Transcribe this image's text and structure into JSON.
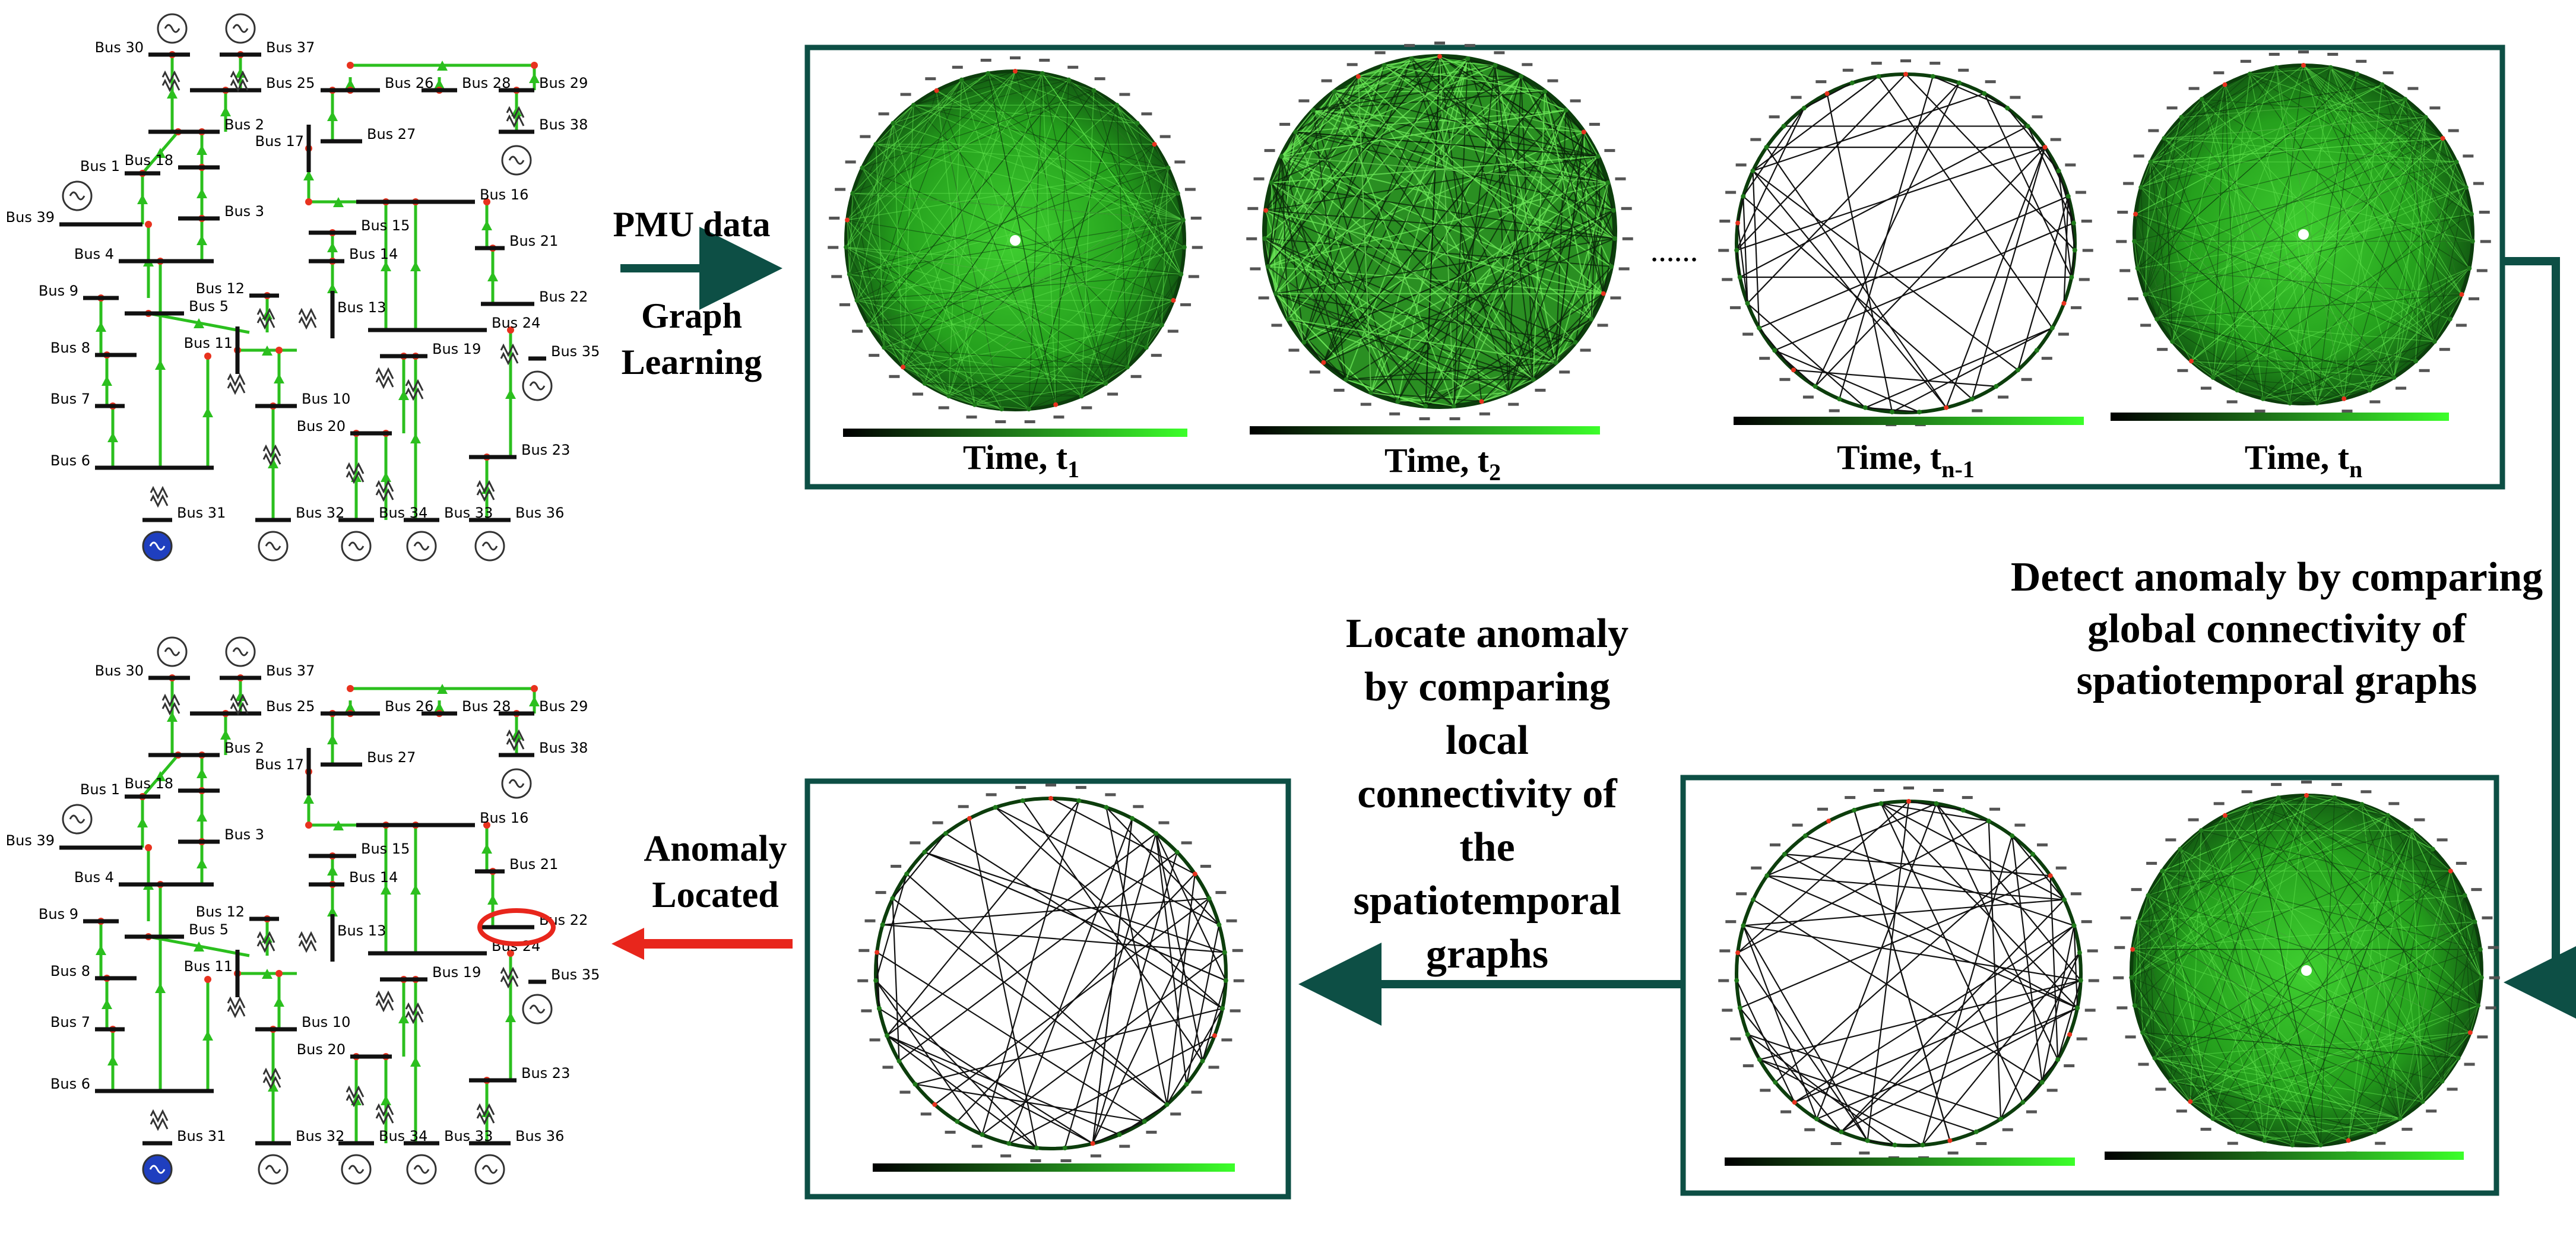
{
  "colors": {
    "frame": "#0d4f45",
    "bus": "#111111",
    "line_green": "#2bbf1e",
    "node_red": "#e8321e",
    "arrow_red": "#e8261c",
    "generator_blue": "#1f3fbf",
    "graph_dark": "#0c3d0c",
    "graph_mid": "#1f7a1a",
    "graph_light": "#36d12a"
  },
  "left_process": {
    "pmu_label": "PMU data",
    "graph_learning_label": [
      "Graph",
      "Learning"
    ]
  },
  "timeline": {
    "time_labels": [
      {
        "text": "Time, t",
        "sub": "1"
      },
      {
        "text": "Time, t",
        "sub": "2"
      },
      {
        "text": "Time, t",
        "sub": "n-1"
      },
      {
        "text": "Time, t",
        "sub": "n"
      }
    ],
    "ellipsis": "……"
  },
  "detect_text": [
    "Detect anomaly by comparing",
    "global connectivity of",
    "spatiotemporal graphs"
  ],
  "locate_text": [
    "Locate anomaly",
    "by comparing",
    "local",
    "connectivity of",
    "the",
    "spatiotemporal",
    "graphs"
  ],
  "anomaly_text": [
    "Anomaly",
    "Located"
  ],
  "bus_labels": [
    "Bus 30",
    "Bus 37",
    "Bus 25",
    "Bus 26",
    "Bus 28",
    "Bus 29",
    "Bus 38",
    "Bus 2",
    "Bus 27",
    "Bus 1",
    "Bus 18",
    "Bus 17",
    "Bus 16",
    "Bus 39",
    "Bus 3",
    "Bus 15",
    "Bus 21",
    "Bus 4",
    "Bus 14",
    "Bus 12",
    "Bus 22",
    "Bus 9",
    "Bus 5",
    "Bus 13",
    "Bus 24",
    "Bus 35",
    "Bus 8",
    "Bus 11",
    "Bus 19",
    "Bus 7",
    "Bus 10",
    "Bus 20",
    "Bus 23",
    "Bus 6",
    "Bus 31",
    "Bus 32",
    "Bus 34",
    "Bus 33",
    "Bus 36"
  ]
}
